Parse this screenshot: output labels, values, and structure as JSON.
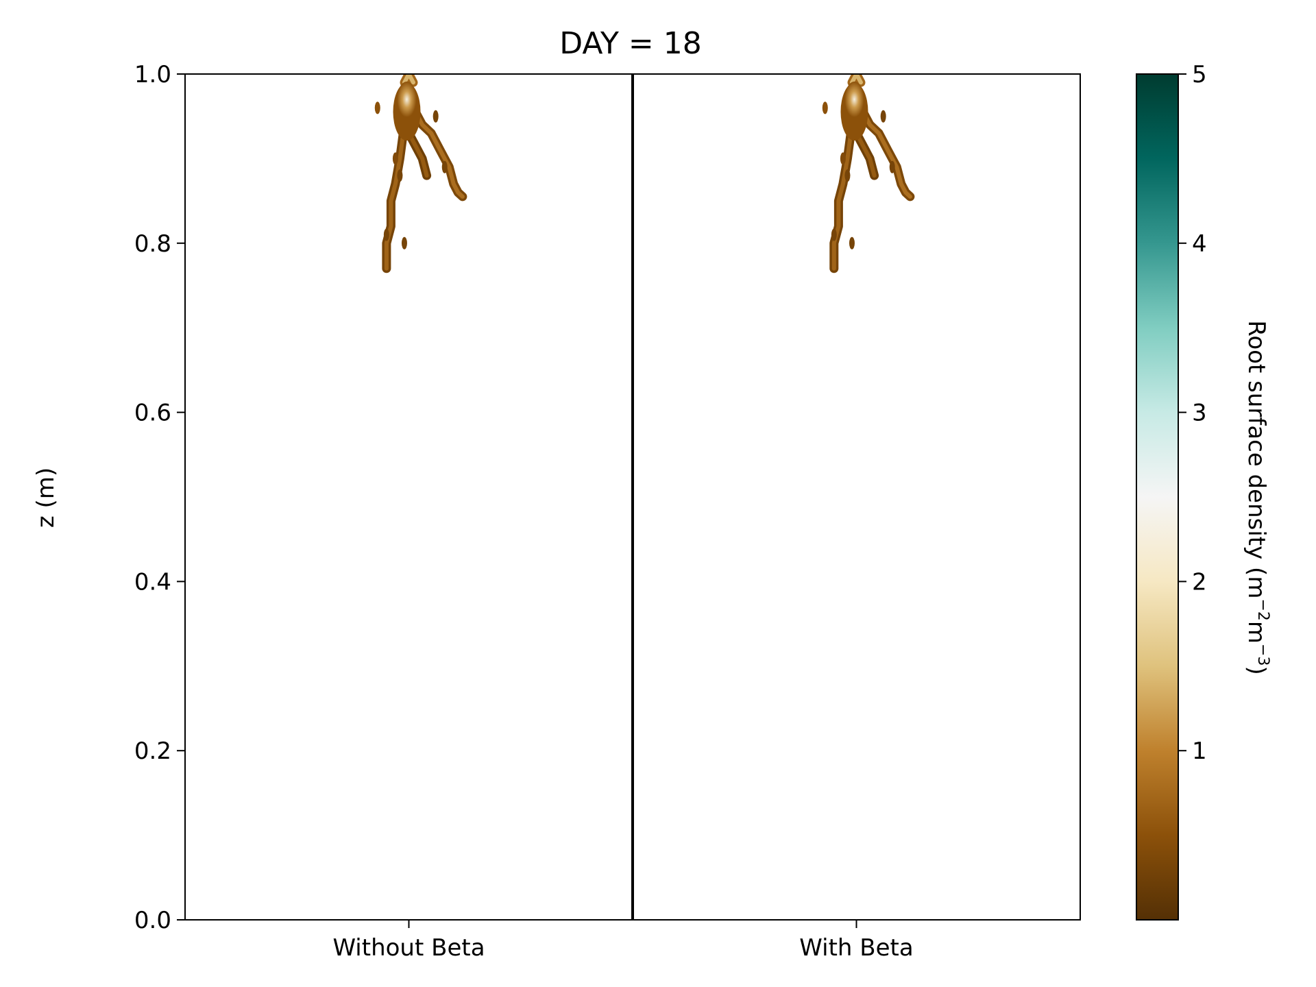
{
  "chart_data": {
    "type": "heatmap",
    "title": "DAY = 18",
    "ylabel": "z (m)",
    "xlabel": "",
    "ylim": [
      0.0,
      1.0
    ],
    "yticks": [
      "0.0",
      "0.2",
      "0.4",
      "0.6",
      "0.8",
      "1.0"
    ],
    "yticks_values": [
      0.0,
      0.2,
      0.4,
      0.6,
      0.8,
      1.0
    ],
    "categories": [
      "Without Beta",
      "With Beta"
    ],
    "grid": false,
    "colorbar": {
      "label": "Root surface density (m",
      "label_sup1": "−2",
      "label_mid": "m",
      "label_sup2": "−3",
      "label_end": ")",
      "range": [
        0,
        5
      ],
      "ticks": [
        "1",
        "2",
        "3",
        "4",
        "5"
      ],
      "tick_values": [
        1,
        2,
        3,
        4,
        5
      ],
      "colormap": "BrBG",
      "colors": [
        "#543005",
        "#8c510a",
        "#bf812d",
        "#dfc27d",
        "#f6e8c3",
        "#f5f5f5",
        "#c7eae5",
        "#80cdc1",
        "#35978f",
        "#01665e",
        "#003c30"
      ]
    },
    "panels": [
      {
        "name": "Without Beta",
        "x_center": 0.5,
        "root_extent_z": [
          0.77,
          1.0
        ],
        "peak_density": 2.3,
        "segments": [
          {
            "x": [
              0.5,
              0.49,
              0.48,
              0.47,
              0.46,
              0.46,
              0.46,
              0.45,
              0.45,
              0.45
            ],
            "z": [
              0.98,
              0.94,
              0.9,
              0.87,
              0.85,
              0.83,
              0.82,
              0.8,
              0.79,
              0.77
            ],
            "v": 0.5
          },
          {
            "x": [
              0.51,
              0.53,
              0.55,
              0.57,
              0.59,
              0.6,
              0.61,
              0.62
            ],
            "z": [
              0.96,
              0.94,
              0.93,
              0.91,
              0.89,
              0.87,
              0.86,
              0.855
            ],
            "v": 0.6
          },
          {
            "x": [
              0.5,
              0.52,
              0.53,
              0.54
            ],
            "z": [
              0.93,
              0.91,
              0.9,
              0.88
            ],
            "v": 0.4
          },
          {
            "x": [
              0.49,
              0.5,
              0.51
            ],
            "z": [
              0.99,
              1.0,
              0.99
            ],
            "v": 1.2
          }
        ],
        "specks": [
          {
            "x": 0.43,
            "z": 0.96,
            "v": 0.5
          },
          {
            "x": 0.47,
            "z": 0.9,
            "v": 0.4
          },
          {
            "x": 0.48,
            "z": 0.88,
            "v": 0.3
          },
          {
            "x": 0.56,
            "z": 0.95,
            "v": 0.3
          },
          {
            "x": 0.58,
            "z": 0.89,
            "v": 0.3
          },
          {
            "x": 0.45,
            "z": 0.81,
            "v": 0.3
          },
          {
            "x": 0.49,
            "z": 0.8,
            "v": 0.3
          }
        ]
      },
      {
        "name": "With Beta",
        "x_center": 0.5,
        "root_extent_z": [
          0.77,
          1.0
        ],
        "peak_density": 2.3,
        "segments": [
          {
            "x": [
              0.5,
              0.49,
              0.48,
              0.47,
              0.46,
              0.46,
              0.46,
              0.45,
              0.45,
              0.45
            ],
            "z": [
              0.98,
              0.94,
              0.9,
              0.87,
              0.85,
              0.83,
              0.82,
              0.8,
              0.79,
              0.77
            ],
            "v": 0.5
          },
          {
            "x": [
              0.51,
              0.53,
              0.55,
              0.57,
              0.59,
              0.6,
              0.61,
              0.62
            ],
            "z": [
              0.96,
              0.94,
              0.93,
              0.91,
              0.89,
              0.87,
              0.86,
              0.855
            ],
            "v": 0.6
          },
          {
            "x": [
              0.5,
              0.52,
              0.53,
              0.54
            ],
            "z": [
              0.93,
              0.91,
              0.9,
              0.88
            ],
            "v": 0.4
          },
          {
            "x": [
              0.49,
              0.5,
              0.51
            ],
            "z": [
              0.99,
              1.0,
              0.99
            ],
            "v": 1.2
          }
        ],
        "specks": [
          {
            "x": 0.43,
            "z": 0.96,
            "v": 0.5
          },
          {
            "x": 0.47,
            "z": 0.9,
            "v": 0.4
          },
          {
            "x": 0.48,
            "z": 0.88,
            "v": 0.3
          },
          {
            "x": 0.56,
            "z": 0.95,
            "v": 0.3
          },
          {
            "x": 0.58,
            "z": 0.89,
            "v": 0.3
          },
          {
            "x": 0.45,
            "z": 0.81,
            "v": 0.3
          },
          {
            "x": 0.49,
            "z": 0.8,
            "v": 0.3
          }
        ]
      }
    ]
  }
}
